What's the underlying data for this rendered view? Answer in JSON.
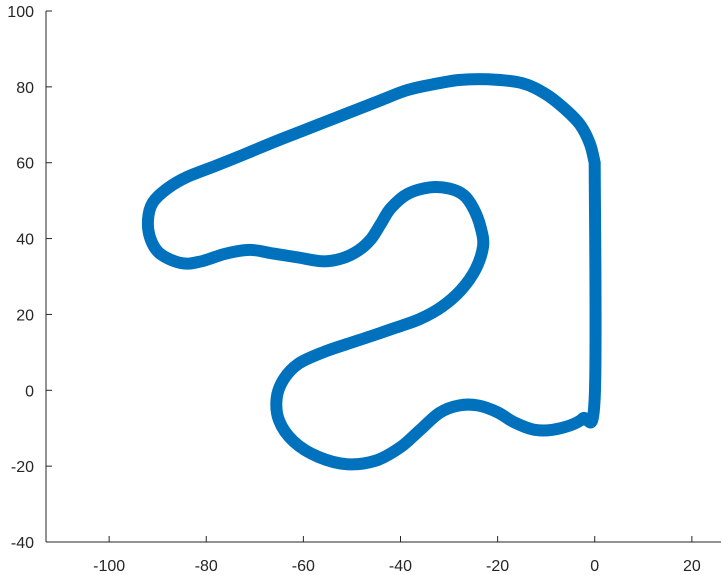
{
  "chart_data": {
    "type": "line",
    "title": "",
    "xlabel": "",
    "ylabel": "",
    "xlim": [
      -113,
      26
    ],
    "ylim": [
      -40,
      100
    ],
    "xticks": [
      -100,
      -80,
      -60,
      -40,
      -20,
      0,
      20
    ],
    "yticks": [
      -40,
      -20,
      0,
      20,
      40,
      60,
      80,
      100
    ],
    "grid": false,
    "box": "left-bottom axes only",
    "series": [
      {
        "color": "#0072BD",
        "closed": true,
        "points": [
          [
            0,
            60
          ],
          [
            -1,
            65
          ],
          [
            -3,
            70
          ],
          [
            -6,
            74
          ],
          [
            -10,
            78
          ],
          [
            -15,
            81
          ],
          [
            -22,
            82
          ],
          [
            -28,
            81.8
          ],
          [
            -34,
            80.5
          ],
          [
            -39,
            79
          ],
          [
            -44,
            76.5
          ],
          [
            -49,
            74
          ],
          [
            -54,
            71.5
          ],
          [
            -60,
            68.5
          ],
          [
            -66,
            65.5
          ],
          [
            -72,
            62.3
          ],
          [
            -78,
            59.2
          ],
          [
            -84,
            56.2
          ],
          [
            -88,
            53.2
          ],
          [
            -91,
            49.5
          ],
          [
            -92,
            45
          ],
          [
            -91.5,
            40
          ],
          [
            -89.5,
            36
          ],
          [
            -85,
            33.5
          ],
          [
            -81,
            34
          ],
          [
            -76,
            36
          ],
          [
            -71,
            37
          ],
          [
            -66,
            36
          ],
          [
            -61,
            35
          ],
          [
            -56,
            34
          ],
          [
            -52,
            34.8
          ],
          [
            -48.5,
            37
          ],
          [
            -46,
            40
          ],
          [
            -44,
            44
          ],
          [
            -42,
            48
          ],
          [
            -38.5,
            51.8
          ],
          [
            -34,
            53.5
          ],
          [
            -30,
            53.2
          ],
          [
            -27,
            51.5
          ],
          [
            -25,
            48
          ],
          [
            -23.5,
            43
          ],
          [
            -23,
            38
          ],
          [
            -24.5,
            32
          ],
          [
            -27.5,
            26.5
          ],
          [
            -31.5,
            22
          ],
          [
            -36,
            18.8
          ],
          [
            -41,
            16.5
          ],
          [
            -46,
            14.3
          ],
          [
            -51,
            12.2
          ],
          [
            -56,
            10
          ],
          [
            -61,
            7
          ],
          [
            -64,
            3
          ],
          [
            -65.5,
            -2
          ],
          [
            -65,
            -8
          ],
          [
            -62,
            -13.5
          ],
          [
            -57,
            -17.5
          ],
          [
            -51,
            -19.5
          ],
          [
            -45,
            -18.5
          ],
          [
            -40,
            -15
          ],
          [
            -36,
            -10.5
          ],
          [
            -32,
            -6
          ],
          [
            -28,
            -4
          ],
          [
            -24,
            -4
          ],
          [
            -20,
            -5.8
          ],
          [
            -16.5,
            -8.5
          ],
          [
            -12,
            -10.5
          ],
          [
            -7,
            -10
          ],
          [
            -2.5,
            -7.5
          ],
          [
            0,
            -2
          ],
          [
            0,
            60
          ]
        ]
      }
    ]
  }
}
